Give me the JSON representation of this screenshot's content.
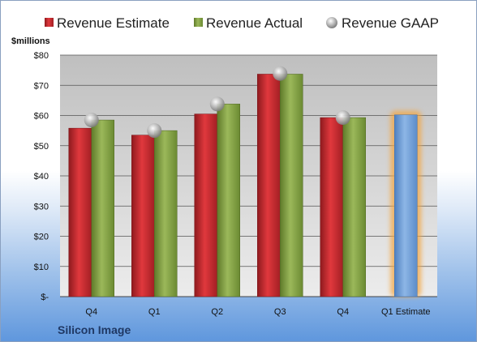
{
  "company_label": "Silicon Image",
  "colors": {
    "estimate": "#c0272d",
    "actual": "#7f9a3d",
    "gaap": "#b8b8b8",
    "q1_estimate": "#6f9fd6",
    "q1_estimate_glow": "#f4a640"
  },
  "chart_data": {
    "type": "bar",
    "unit_label": "$millions",
    "categories": [
      "Q4",
      "Q1",
      "Q2",
      "Q3",
      "Q4",
      "Q1 Estimate"
    ],
    "series": [
      {
        "name": "Revenue Estimate",
        "kind": "bar",
        "values": [
          55.8,
          53.5,
          60.5,
          73.7,
          59.3,
          null
        ]
      },
      {
        "name": "Revenue Actual",
        "kind": "bar",
        "values": [
          58.5,
          55.0,
          63.8,
          73.7,
          59.3,
          null
        ]
      },
      {
        "name": "Revenue GAAP",
        "kind": "marker",
        "values": [
          58.5,
          55.0,
          63.8,
          73.9,
          59.3,
          null
        ]
      }
    ],
    "q1_estimate": {
      "category": "Q1 Estimate",
      "value": 60.2
    },
    "ylim": [
      0,
      80
    ],
    "yticks": [
      0,
      10,
      20,
      30,
      40,
      50,
      60,
      70,
      80
    ],
    "ytick_labels": [
      "$-",
      "$10",
      "$20",
      "$30",
      "$40",
      "$50",
      "$60",
      "$70",
      "$80"
    ],
    "grid": true,
    "legend": "top"
  }
}
